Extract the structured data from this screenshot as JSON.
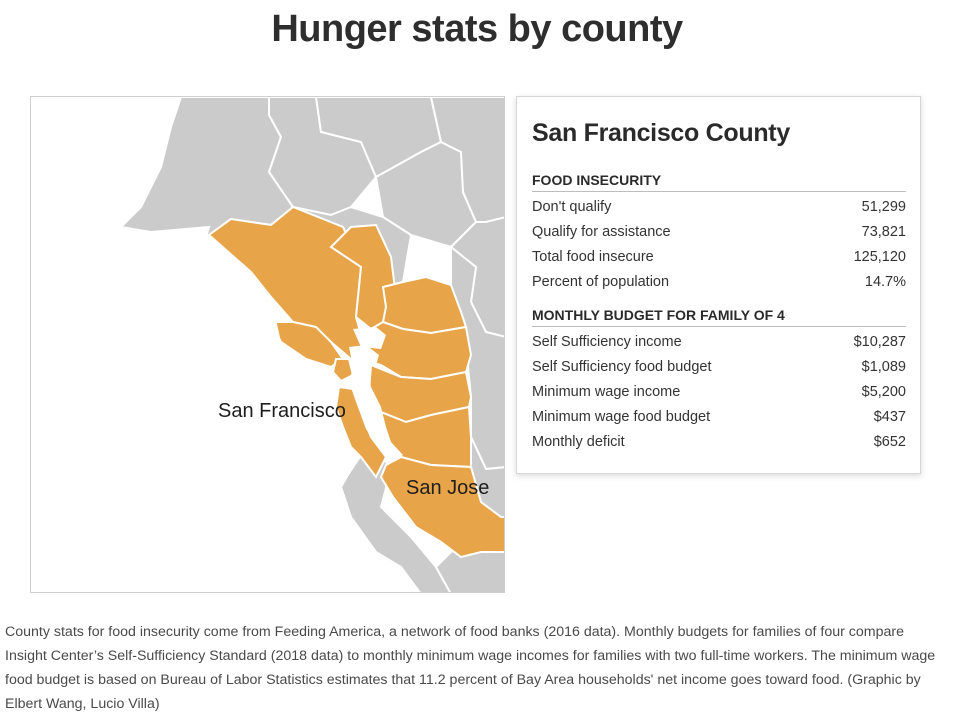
{
  "page": {
    "title": "Hunger stats by county"
  },
  "map": {
    "colors": {
      "highlight": "#e8a448",
      "other_county": "#cbcbcb",
      "water": "#ffffff",
      "border": "#ffffff"
    },
    "labels": {
      "san_francisco": "San Francisco",
      "san_jose": "San Jose"
    }
  },
  "panel": {
    "county_name": "San Francisco County",
    "food_insecurity": {
      "heading": "FOOD INSECURITY",
      "rows": [
        {
          "label": "Don't qualify",
          "value": "51,299"
        },
        {
          "label": "Qualify for assistance",
          "value": "73,821"
        },
        {
          "label": "Total food insecure",
          "value": "125,120"
        },
        {
          "label": "Percent of population",
          "value": "14.7%"
        }
      ]
    },
    "monthly_budget": {
      "heading": "MONTHLY BUDGET FOR FAMILY OF 4",
      "rows": [
        {
          "label": "Self Sufficiency income",
          "value": "$10,287"
        },
        {
          "label": "Self Sufficiency food budget",
          "value": "$1,089"
        },
        {
          "label": "Minimum wage income",
          "value": "$5,200"
        },
        {
          "label": "Minimum wage food budget",
          "value": "$437"
        },
        {
          "label": "Monthly deficit",
          "value": "$652"
        }
      ]
    }
  },
  "caption": {
    "text": "County stats for food insecurity come from Feeding America, a network of food banks (2016 data). Monthly budgets for families of four compare Insight Center’s Self-Sufficiency Standard (2018 data) to monthly minimum wage incomes for families with two full-time workers. The minimum wage food budget is based on Bureau of Labor Statistics estimates that 11.2 percent of Bay Area households' net income goes toward food. (Graphic by Elbert Wang, Lucio Villa)"
  }
}
